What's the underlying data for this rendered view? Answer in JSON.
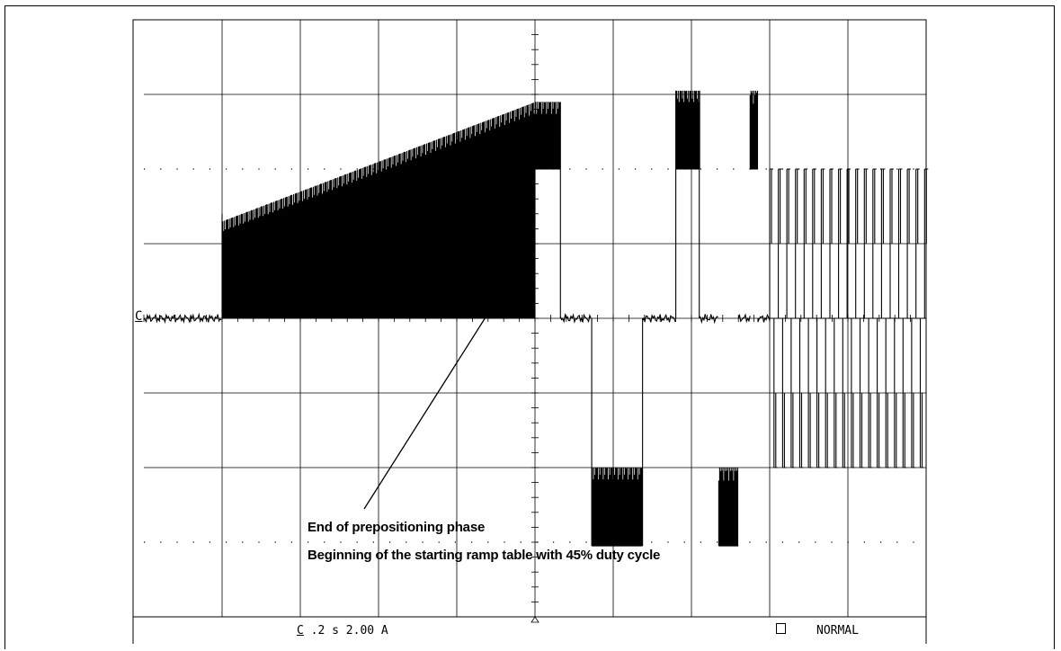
{
  "chart_data": {
    "type": "line",
    "title": "",
    "xlabel": "",
    "ylabel": "",
    "x_unit": "s/div",
    "y_unit": "A/div",
    "time_per_div": 0.2,
    "current_per_div": 2.0,
    "x_divisions": 10,
    "y_divisions": 8,
    "xlim": [
      0,
      2.0
    ],
    "ylim": [
      -8,
      8
    ],
    "grid": true,
    "series": [
      {
        "segments": [
          {
            "t0": 0.0,
            "t1": 0.2,
            "kind": "flat",
            "level": 0
          },
          {
            "t0": 0.2,
            "t1": 1.0,
            "kind": "pwm",
            "low": 0,
            "high_start": 2.6,
            "high_end": 5.8
          },
          {
            "t0": 1.0,
            "t1": 1.065,
            "kind": "pwm",
            "low": 4.0,
            "high": 5.8
          },
          {
            "t0": 1.065,
            "t1": 1.145,
            "kind": "flat",
            "level": 0
          },
          {
            "t0": 1.145,
            "t1": 1.275,
            "kind": "pwm",
            "low": -6.1,
            "high": -4.0
          },
          {
            "t0": 1.275,
            "t1": 1.36,
            "kind": "flat",
            "level": 0
          },
          {
            "t0": 1.36,
            "t1": 1.42,
            "kind": "pwm",
            "low": 4.0,
            "high": 6.1
          },
          {
            "t0": 1.42,
            "t1": 1.47,
            "kind": "flat",
            "level": 0
          },
          {
            "t0": 1.47,
            "t1": 1.52,
            "kind": "pwm",
            "low": -6.1,
            "high": -4.0
          },
          {
            "t0": 1.52,
            "t1": 1.55,
            "kind": "flat",
            "level": 0
          },
          {
            "t0": 1.55,
            "t1": 1.57,
            "kind": "pwm",
            "low": 4.0,
            "high": 6.1
          },
          {
            "t0": 1.57,
            "t1": 1.6,
            "kind": "flat",
            "level": 0
          },
          {
            "t0": 1.6,
            "t1": 2.0,
            "kind": "alt",
            "pos_low": 2.0,
            "pos_high": 4.0,
            "neg_low": -4.0,
            "neg_high": -2.0,
            "period": 0.022
          }
        ]
      }
    ],
    "annotations": [
      {
        "text_line1": "End of prepositioning phase",
        "text_line2": "Beginning of the starting ramp table with 45% duty cycle",
        "points_to_t": 1.0,
        "points_to_i": 4.0
      }
    ]
  },
  "labels": {
    "annotation_line1": "End of prepositioning phase",
    "annotation_line2": "Beginning of the starting ramp table with 45% duty cycle",
    "ground_marker": "C",
    "status_scale": ".2 s 2.00 A",
    "status_mode": "NORMAL"
  },
  "colors": {
    "trace": "#000000",
    "grid": "#000000",
    "background": "#ffffff"
  }
}
